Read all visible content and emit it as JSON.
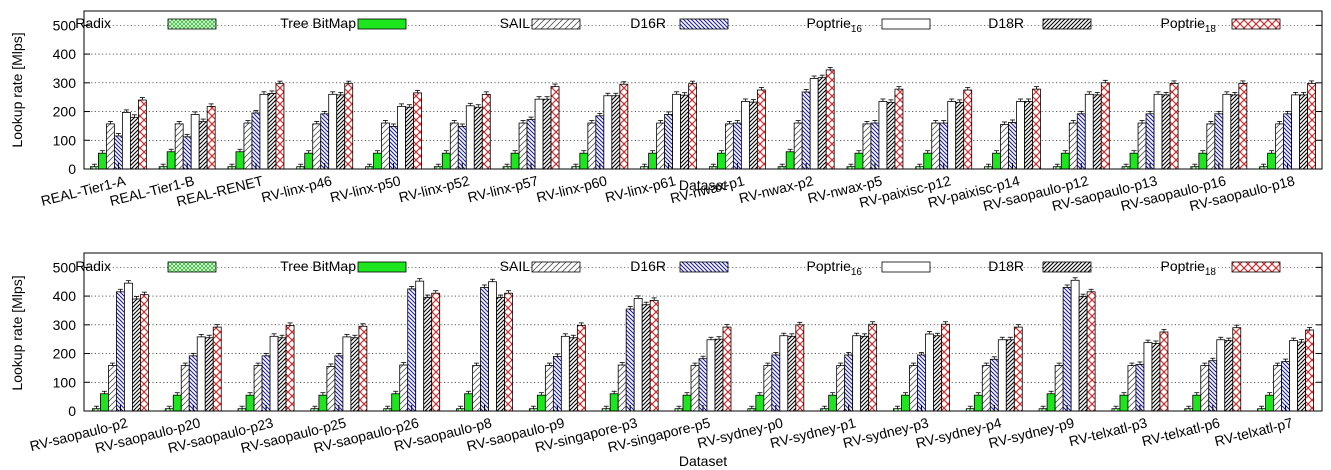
{
  "chart_data": [
    {
      "type": "bar",
      "ylabel": "Lookup rate [Mlps]",
      "xlabel": "Dataset",
      "ylim": [
        0,
        550
      ],
      "yticks": [
        0,
        100,
        200,
        300,
        400,
        500
      ],
      "grid": "horizontal dotted",
      "legend": "top, inside plot",
      "categories": [
        "REAL-Tier1-A",
        "REAL-Tier1-B",
        "REAL-RENET",
        "RV-linx-p46",
        "RV-linx-p50",
        "RV-linx-p52",
        "RV-linx-p57",
        "RV-linx-p60",
        "RV-linx-p61",
        "RV-nwax-p1",
        "RV-nwax-p2",
        "RV-nwax-p5",
        "RV-paixisc-p12",
        "RV-paixisc-p14",
        "RV-saopaulo-p12",
        "RV-saopaulo-p13",
        "RV-saopaulo-p16",
        "RV-saopaulo-p18"
      ],
      "series": [
        {
          "name": "Radix",
          "legend_base": "Radix",
          "legend_sub": "",
          "values": [
            8,
            8,
            8,
            8,
            8,
            8,
            8,
            8,
            8,
            8,
            8,
            8,
            8,
            8,
            8,
            8,
            8,
            8
          ]
        },
        {
          "name": "Tree BitMap",
          "legend_base": "Tree BitMap",
          "legend_sub": "",
          "values": [
            55,
            60,
            60,
            55,
            55,
            55,
            55,
            55,
            55,
            55,
            60,
            55,
            55,
            55,
            55,
            55,
            55,
            55
          ]
        },
        {
          "name": "SAIL",
          "legend_base": "SAIL",
          "legend_sub": "",
          "values": [
            157,
            157,
            160,
            157,
            160,
            160,
            160,
            160,
            160,
            157,
            160,
            157,
            160,
            155,
            160,
            160,
            157,
            157
          ]
        },
        {
          "name": "D16R",
          "legend_base": "D16R",
          "legend_sub": "",
          "values": [
            115,
            112,
            195,
            192,
            148,
            148,
            172,
            185,
            190,
            160,
            268,
            160,
            160,
            162,
            192,
            192,
            192,
            192
          ]
        },
        {
          "name": "Poptrie16",
          "legend_base": "Poptrie",
          "legend_sub": "16",
          "values": [
            197,
            190,
            260,
            260,
            218,
            220,
            243,
            255,
            260,
            235,
            315,
            235,
            235,
            235,
            260,
            260,
            260,
            258
          ]
        },
        {
          "name": "D18R",
          "legend_base": "D18R",
          "legend_sub": "",
          "values": [
            180,
            165,
            263,
            258,
            215,
            215,
            243,
            255,
            257,
            233,
            318,
            232,
            232,
            235,
            258,
            258,
            258,
            258
          ]
        },
        {
          "name": "Poptrie18",
          "legend_base": "Poptrie",
          "legend_sub": "18",
          "values": [
            240,
            218,
            297,
            297,
            265,
            260,
            287,
            295,
            297,
            275,
            345,
            278,
            275,
            278,
            300,
            298,
            298,
            298
          ]
        }
      ]
    },
    {
      "type": "bar",
      "ylabel": "Lookup rate [Mlps]",
      "xlabel": "Dataset",
      "ylim": [
        0,
        550
      ],
      "yticks": [
        0,
        100,
        200,
        300,
        400,
        500
      ],
      "grid": "horizontal dotted",
      "legend": "top, inside plot",
      "categories": [
        "RV-saopaulo-p2",
        "RV-saopaulo-p20",
        "RV-saopaulo-p23",
        "RV-saopaulo-p25",
        "RV-saopaulo-p26",
        "RV-saopaulo-p8",
        "RV-saopaulo-p9",
        "RV-singapore-p3",
        "RV-singapore-p5",
        "RV-sydney-p0",
        "RV-sydney-p1",
        "RV-sydney-p3",
        "RV-sydney-p4",
        "RV-sydney-p9",
        "RV-telxatl-p3",
        "RV-telxatl-p6",
        "RV-telxatl-p7"
      ],
      "series": [
        {
          "name": "Radix",
          "legend_base": "Radix",
          "legend_sub": "",
          "values": [
            8,
            8,
            8,
            8,
            8,
            8,
            8,
            8,
            8,
            8,
            8,
            8,
            8,
            8,
            8,
            8,
            8
          ]
        },
        {
          "name": "Tree BitMap",
          "legend_base": "Tree BitMap",
          "legend_sub": "",
          "values": [
            60,
            55,
            55,
            55,
            60,
            60,
            55,
            60,
            55,
            55,
            55,
            55,
            55,
            60,
            55,
            55,
            55
          ]
        },
        {
          "name": "SAIL",
          "legend_base": "SAIL",
          "legend_sub": "",
          "values": [
            158,
            158,
            158,
            155,
            160,
            158,
            158,
            160,
            158,
            158,
            158,
            158,
            158,
            158,
            158,
            158,
            158
          ]
        },
        {
          "name": "D16R",
          "legend_base": "D16R",
          "legend_sub": "",
          "values": [
            415,
            192,
            192,
            192,
            425,
            430,
            190,
            355,
            182,
            195,
            195,
            195,
            180,
            430,
            162,
            175,
            172
          ]
        },
        {
          "name": "Poptrie16",
          "legend_base": "Poptrie",
          "legend_sub": "16",
          "values": [
            445,
            258,
            260,
            258,
            452,
            450,
            260,
            392,
            248,
            262,
            262,
            268,
            248,
            455,
            238,
            248,
            245
          ]
        },
        {
          "name": "D18R",
          "legend_base": "D18R",
          "legend_sub": "",
          "values": [
            390,
            255,
            255,
            255,
            395,
            395,
            255,
            370,
            250,
            260,
            260,
            262,
            248,
            398,
            235,
            245,
            240
          ]
        },
        {
          "name": "Poptrie18",
          "legend_base": "Poptrie",
          "legend_sub": "18",
          "values": [
            405,
            292,
            298,
            295,
            410,
            410,
            298,
            385,
            292,
            300,
            302,
            302,
            292,
            415,
            275,
            290,
            282
          ]
        }
      ]
    }
  ]
}
